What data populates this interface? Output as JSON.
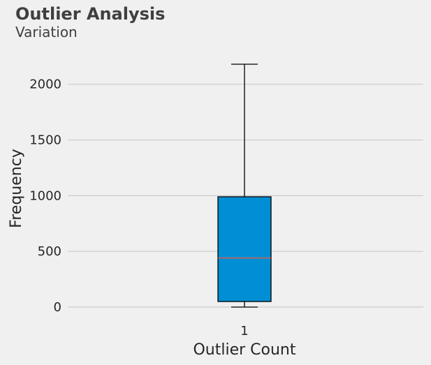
{
  "chart_data": {
    "type": "box",
    "title": "Outlier Analysis",
    "subtitle": "Variation",
    "xlabel": "Outlier Count",
    "ylabel": "Frequency",
    "categories": [
      "1"
    ],
    "box": {
      "whisker_low": 0,
      "q1": 50,
      "median": 440,
      "q3": 990,
      "whisker_high": 2180
    },
    "yticks": [
      0,
      500,
      1000,
      1500,
      2000
    ],
    "ylim": [
      -100,
      2280
    ],
    "grid": "horizontal",
    "colors": {
      "box_fill": "#008fd5",
      "median": "#fc4f30",
      "grid": "#cbcbcb",
      "background": "#f0f0f0"
    }
  }
}
